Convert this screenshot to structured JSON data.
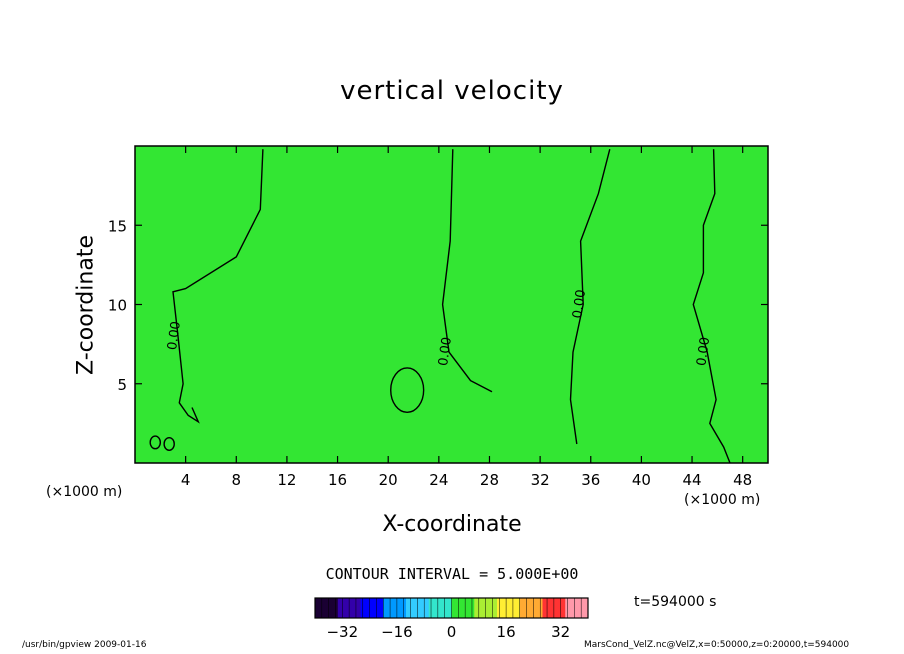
{
  "header": {
    "title": "vertical velocity"
  },
  "axes": {
    "xlabel": "X-coordinate",
    "ylabel": "Z-coordinate",
    "x_unit_left": "(×1000 m)",
    "x_unit_right": "(×1000 m)"
  },
  "contour_interval_text": "CONTOUR INTERVAL = 5.000E+00",
  "time_text": "t=594000 s",
  "footer": {
    "left": "/usr/bin/gpview   2009-01-16",
    "right": "MarsCond_VelZ.nc@VelZ,x=0:50000,z=0:20000,t=594000"
  },
  "colors": {
    "field": "#33e633",
    "contour": "#000000"
  },
  "chart_data": {
    "type": "heatmap",
    "title": "vertical velocity",
    "xlabel": "X-coordinate",
    "ylabel": "Z-coordinate",
    "xlim": [
      0,
      50
    ],
    "ylim": [
      0,
      20
    ],
    "xticks": [
      4,
      8,
      12,
      16,
      20,
      24,
      28,
      32,
      36,
      40,
      44,
      48
    ],
    "yticks": [
      5,
      10,
      15
    ],
    "field_value_approx": 0,
    "contour_label": "0.00",
    "zero_contours": [
      [
        [
          10.1,
          19.8
        ],
        [
          9.9,
          16.0
        ],
        [
          8.0,
          13.0
        ],
        [
          4.0,
          11.0
        ],
        [
          3.0,
          10.8
        ],
        [
          3.4,
          8.0
        ],
        [
          3.8,
          5.0
        ],
        [
          3.5,
          3.8
        ],
        [
          4.2,
          3.0
        ],
        [
          5.0,
          2.6
        ],
        [
          4.5,
          3.5
        ]
      ],
      [
        [
          25.1,
          19.8
        ],
        [
          24.9,
          14.0
        ],
        [
          24.3,
          10.0
        ],
        [
          24.8,
          7.0
        ],
        [
          26.5,
          5.2
        ],
        [
          28.2,
          4.5
        ]
      ],
      [
        [
          37.5,
          19.8
        ],
        [
          36.6,
          17.0
        ],
        [
          35.2,
          14.0
        ],
        [
          35.4,
          10.0
        ],
        [
          34.6,
          7.0
        ],
        [
          34.4,
          4.0
        ],
        [
          34.9,
          1.2
        ]
      ],
      [
        [
          45.7,
          19.8
        ],
        [
          45.8,
          17.0
        ],
        [
          44.9,
          15.0
        ],
        [
          44.9,
          12.0
        ],
        [
          44.1,
          10.0
        ],
        [
          45.2,
          7.0
        ],
        [
          45.9,
          4.0
        ],
        [
          45.4,
          2.5
        ],
        [
          46.5,
          1.0
        ],
        [
          47.0,
          0.0
        ]
      ]
    ],
    "closed_contours": [
      {
        "cx": 21.5,
        "cy": 4.6,
        "rx": 1.3,
        "ry": 1.4
      },
      {
        "cx": 1.6,
        "cy": 1.3,
        "rx": 0.4,
        "ry": 0.4
      },
      {
        "cx": 2.7,
        "cy": 1.2,
        "rx": 0.4,
        "ry": 0.4
      }
    ],
    "colorbar": {
      "ticks": [
        -32,
        -16,
        0,
        16,
        32
      ],
      "range": [
        -40,
        40
      ],
      "colors": [
        "#1a0033",
        "#3300aa",
        "#0000ff",
        "#0099ff",
        "#33ccff",
        "#33e6cc",
        "#33e633",
        "#aaee33",
        "#ffee33",
        "#ffaa33",
        "#ff3333",
        "#ff99aa"
      ]
    }
  }
}
